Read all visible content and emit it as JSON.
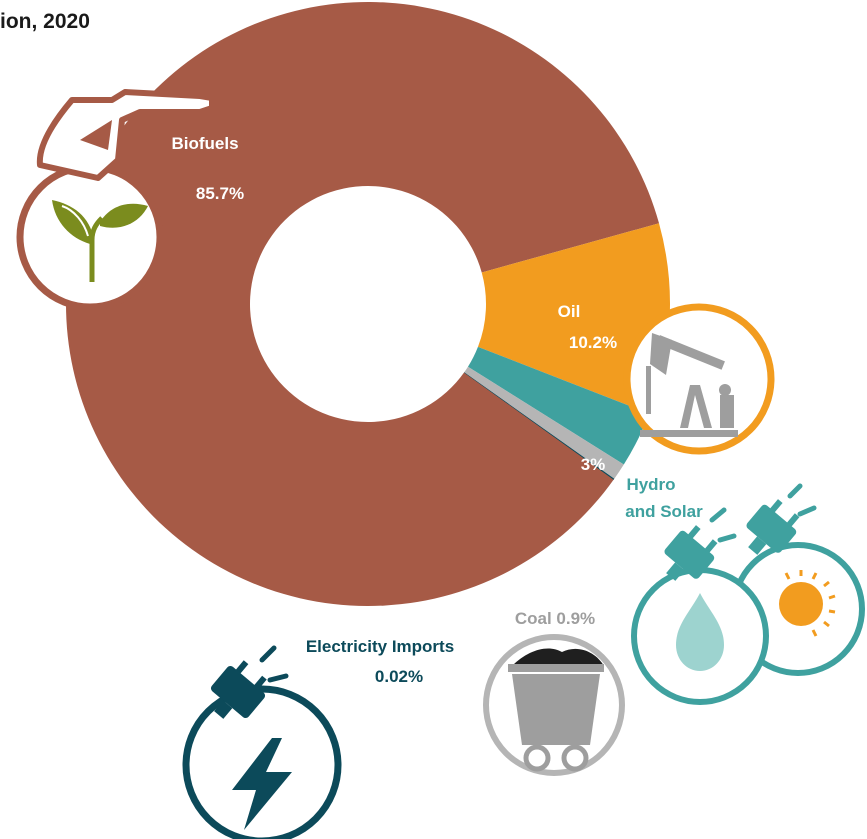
{
  "title": "ion, 2020",
  "colors": {
    "biofuels": "#A65A46",
    "oil": "#F29C1F",
    "hydro_solar": "#3FA19F",
    "coal": "#B5B5B5",
    "electricity": "#0C4A5A",
    "icon_coal_fill": "#9E9E9E",
    "icon_hydro_fill": "#9DD3CF",
    "icon_sun_fill": "#F29C1F",
    "icon_plant_fill": "#7B8C1E",
    "icon_oil_fill": "#9E9E9E"
  },
  "labels": {
    "biofuels_name": "Biofuels",
    "biofuels_pct": "85.7%",
    "oil_name": "Oil",
    "oil_pct": "10.2%",
    "hydro_pct": "3%",
    "hydro_name_1": "Hydro",
    "hydro_name_2": "and Solar",
    "coal": "Coal 0.9%",
    "elec_name": "Electricity Imports",
    "elec_pct": "0.02%"
  },
  "icons": [
    "fuel-nozzle-icon",
    "plant-icon",
    "oil-pump-icon",
    "power-plug-icon",
    "water-drop-icon",
    "sun-icon",
    "coal-cart-icon",
    "lightning-icon"
  ],
  "chart_data": {
    "type": "pie",
    "title": "ion, 2020",
    "donut": true,
    "slices": [
      {
        "name": "Biofuels",
        "value": 85.7
      },
      {
        "name": "Oil",
        "value": 10.2
      },
      {
        "name": "Hydro and Solar",
        "value": 3
      },
      {
        "name": "Coal",
        "value": 0.9
      },
      {
        "name": "Electricity Imports",
        "value": 0.02
      }
    ]
  }
}
